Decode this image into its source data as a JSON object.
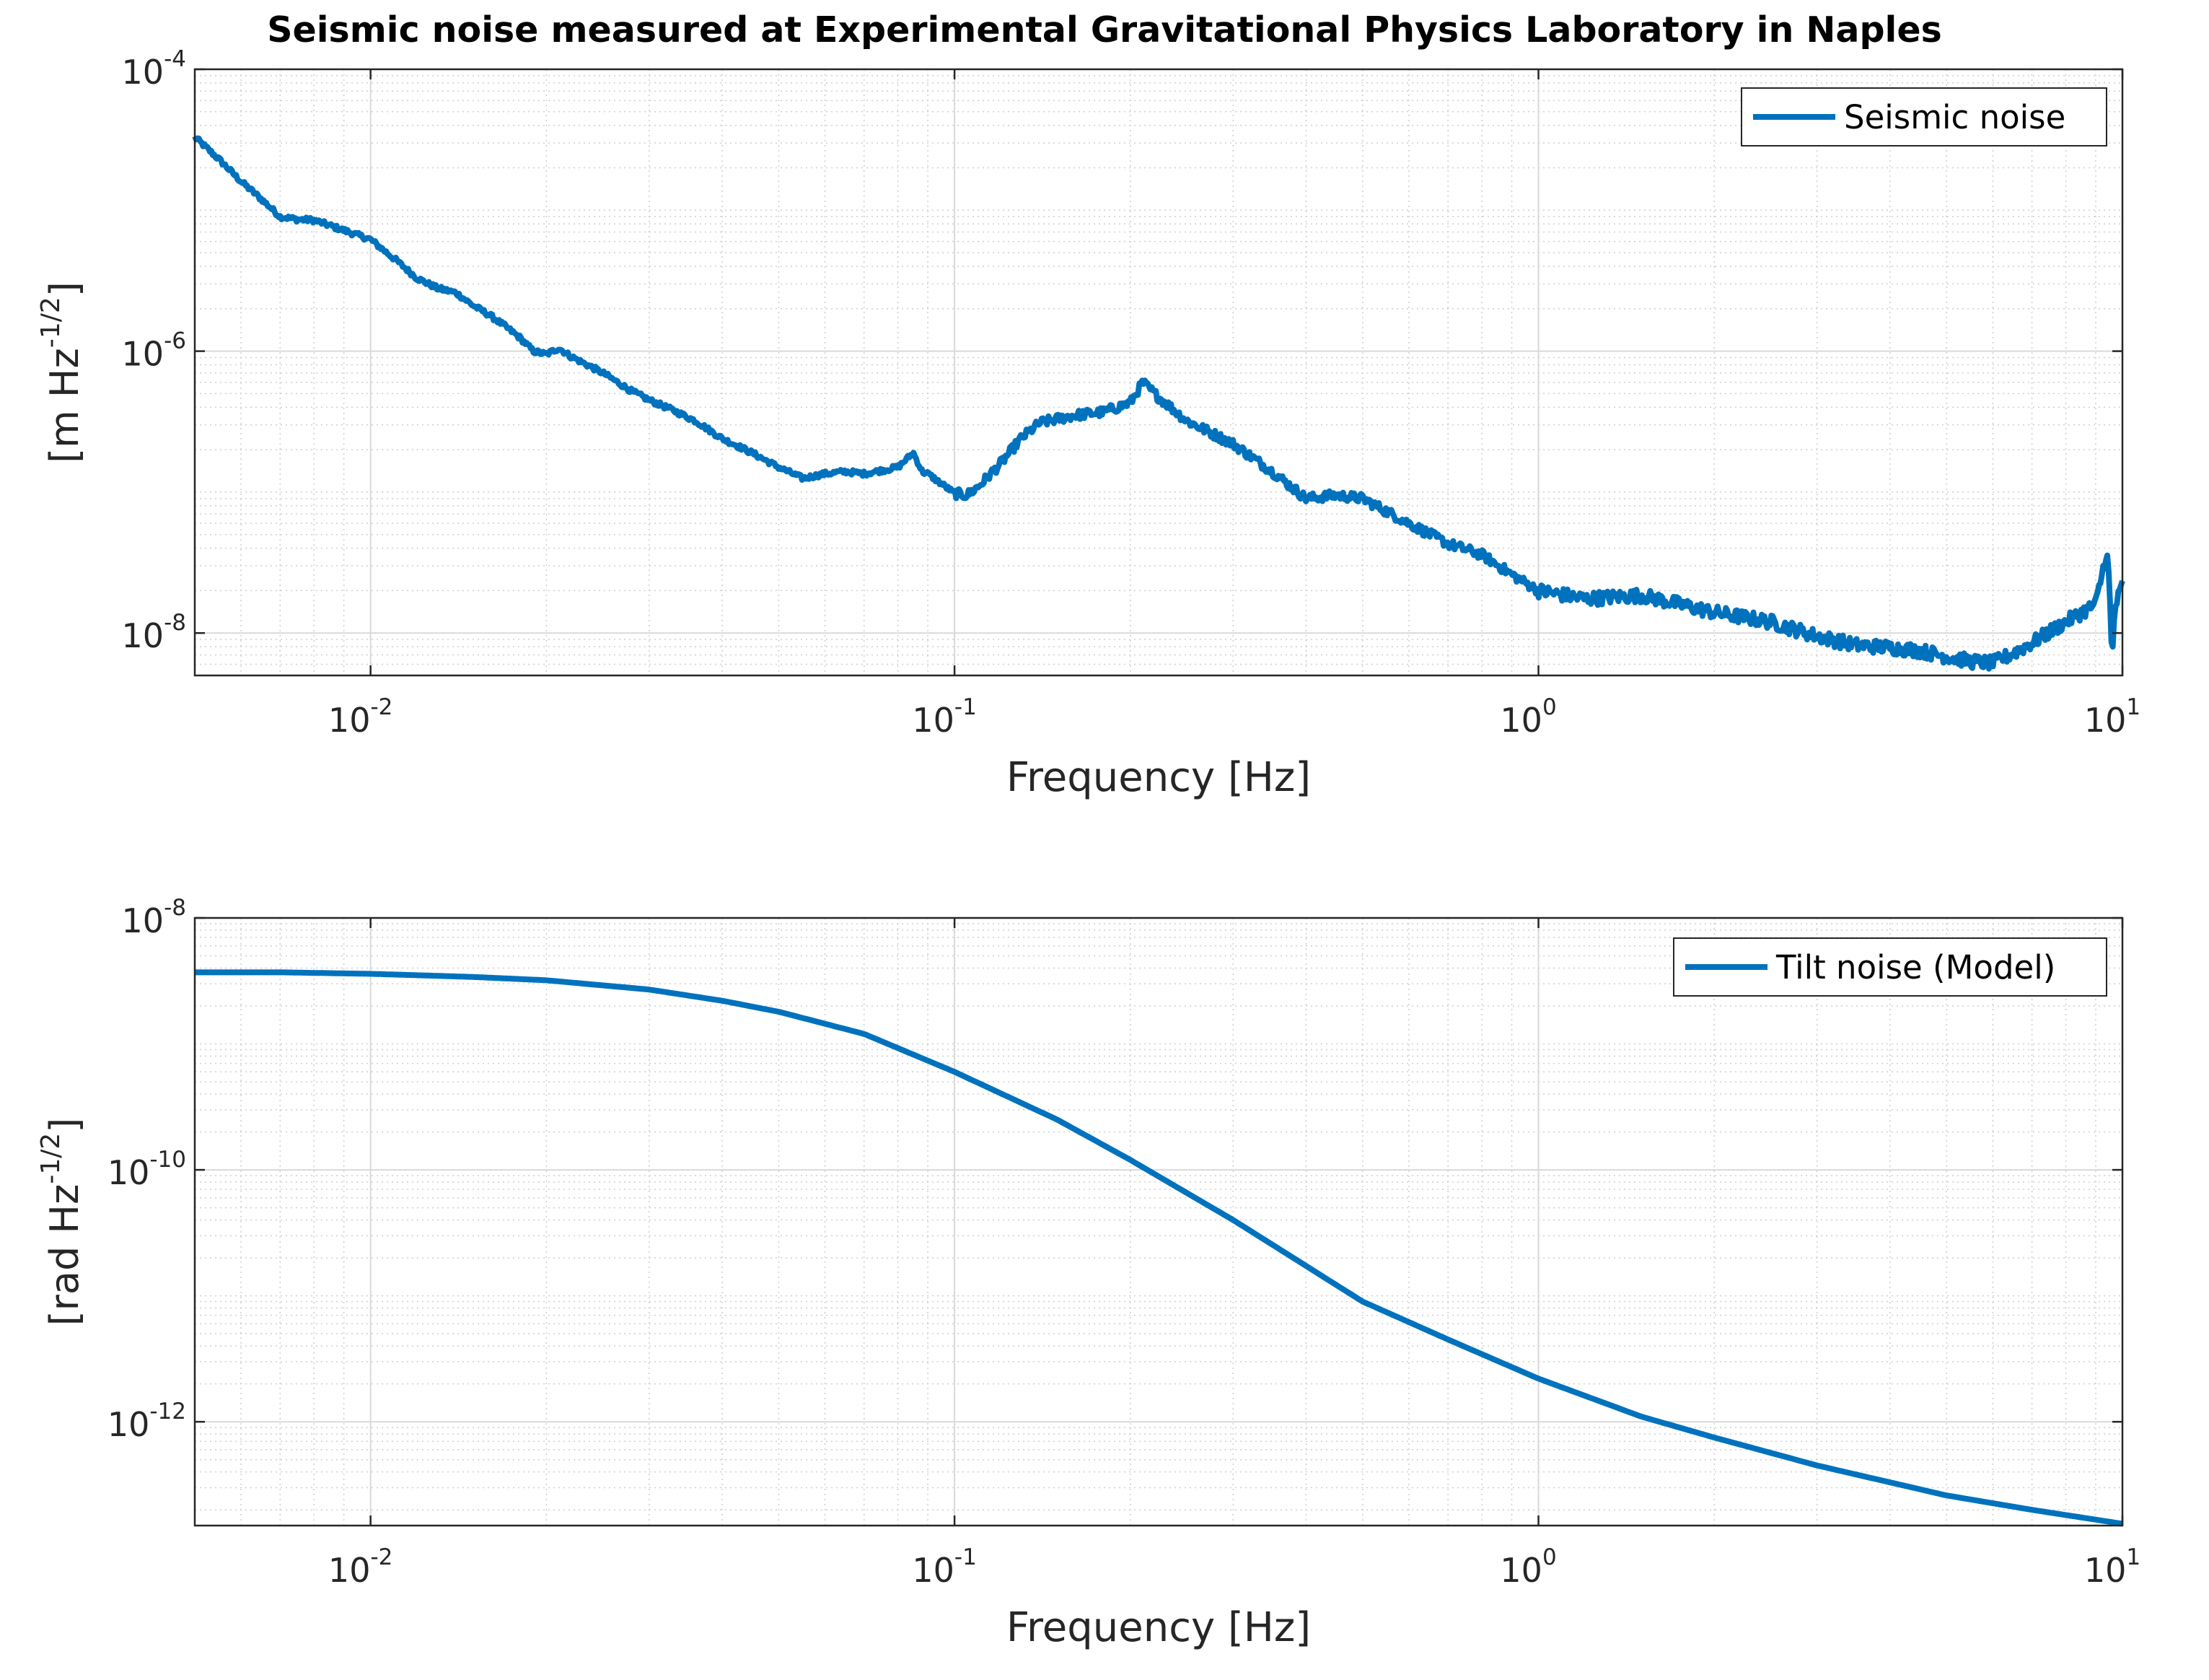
{
  "figure": {
    "title": "Seismic noise measured at Experimental Gravitational Physics Laboratory in Naples",
    "line_color": "#0072BD"
  },
  "chart_data": [
    {
      "type": "line",
      "xscale": "log",
      "yscale": "log",
      "xlim": [
        0.005,
        10
      ],
      "ylim": [
        5e-09,
        0.0001
      ],
      "xlabel": "Frequency [Hz]",
      "ylabel_base": "[m Hz",
      "ylabel_exp": "-1/2",
      "ylabel_close": "]",
      "grid": true,
      "minor_grid": true,
      "legend_location": "top-right",
      "xticks": [
        {
          "value": 0.01,
          "base": "10",
          "exp": "-2"
        },
        {
          "value": 0.1,
          "base": "10",
          "exp": "-1"
        },
        {
          "value": 1,
          "base": "10",
          "exp": "0"
        },
        {
          "value": 10,
          "base": "10",
          "exp": "1"
        }
      ],
      "yticks": [
        {
          "value": 1e-08,
          "base": "10",
          "exp": "-8"
        },
        {
          "value": 1e-06,
          "base": "10",
          "exp": "-6"
        },
        {
          "value": 0.0001,
          "base": "10",
          "exp": "-4"
        }
      ],
      "series": [
        {
          "name": "Seismic noise",
          "noisy": true,
          "x": [
            0.005,
            0.0055,
            0.006,
            0.0065,
            0.007,
            0.0075,
            0.008,
            0.009,
            0.01,
            0.011,
            0.012,
            0.013,
            0.014,
            0.015,
            0.016,
            0.017,
            0.018,
            0.019,
            0.02,
            0.021,
            0.022,
            0.025,
            0.028,
            0.03,
            0.033,
            0.036,
            0.04,
            0.045,
            0.05,
            0.055,
            0.06,
            0.065,
            0.07,
            0.08,
            0.085,
            0.088,
            0.09,
            0.1,
            0.105,
            0.11,
            0.12,
            0.13,
            0.14,
            0.15,
            0.16,
            0.18,
            0.2,
            0.21,
            0.22,
            0.25,
            0.3,
            0.35,
            0.4,
            0.45,
            0.5,
            0.6,
            0.7,
            0.8,
            0.9,
            1.0,
            1.2,
            1.5,
            1.8,
            2.0,
            2.5,
            3.0,
            3.5,
            4.0,
            4.5,
            5.0,
            5.5,
            6.0,
            6.5,
            7.0,
            8.0,
            9.0,
            9.4,
            9.5,
            9.6,
            9.7,
            10.0
          ],
          "y": [
            3.3e-05,
            2.3e-05,
            1.6e-05,
            1.2e-05,
            9e-06,
            8.6e-06,
            8.5e-06,
            7.2e-06,
            6.2e-06,
            4.5e-06,
            3.3e-06,
            2.8e-06,
            2.6e-06,
            2.1e-06,
            1.8e-06,
            1.5e-06,
            1.25e-06,
            1e-06,
            9.5e-07,
            1.05e-06,
            9.2e-07,
            7e-07,
            5.2e-07,
            4.5e-07,
            3.8e-07,
            3.2e-07,
            2.4e-07,
            1.9e-07,
            1.5e-07,
            1.25e-07,
            1.35e-07,
            1.4e-07,
            1.35e-07,
            1.5e-07,
            1.9e-07,
            1.4e-07,
            1.35e-07,
            9.8e-08,
            9.5e-08,
            1.1e-07,
            1.6e-07,
            2.4e-07,
            3.1e-07,
            3.3e-07,
            3.5e-07,
            3.7e-07,
            4.3e-07,
            6e-07,
            5e-07,
            3.2e-07,
            2.2e-07,
            1.4e-07,
            9e-08,
            9.5e-08,
            9e-08,
            6e-08,
            4.3e-08,
            3.6e-08,
            2.6e-08,
            2e-08,
            1.75e-08,
            1.85e-08,
            1.55e-08,
            1.4e-08,
            1.2e-08,
            9.5e-09,
            8.2e-09,
            7.9e-09,
            7.5e-09,
            6.8e-09,
            6.3e-09,
            6.1e-09,
            7.2e-09,
            8.5e-09,
            1.2e-08,
            1.6e-08,
            3.8e-08,
            2.2e-08,
            6e-09,
            1.5e-08,
            2.2e-08
          ]
        }
      ]
    },
    {
      "type": "line",
      "xscale": "log",
      "yscale": "log",
      "xlim": [
        0.005,
        10
      ],
      "ylim": [
        1.5e-13,
        1e-08
      ],
      "xlabel": "Frequency [Hz]",
      "ylabel_base": "[rad Hz",
      "ylabel_exp": "-1/2",
      "ylabel_close": "]",
      "grid": true,
      "minor_grid": true,
      "legend_location": "top-right",
      "xticks": [
        {
          "value": 0.01,
          "base": "10",
          "exp": "-2"
        },
        {
          "value": 0.1,
          "base": "10",
          "exp": "-1"
        },
        {
          "value": 1,
          "base": "10",
          "exp": "0"
        },
        {
          "value": 10,
          "base": "10",
          "exp": "1"
        }
      ],
      "yticks": [
        {
          "value": 1e-12,
          "base": "10",
          "exp": "-12"
        },
        {
          "value": 1e-10,
          "base": "10",
          "exp": "-10"
        },
        {
          "value": 1e-08,
          "base": "10",
          "exp": "-8"
        }
      ],
      "series": [
        {
          "name": "Tilt noise (Model)",
          "noisy": false,
          "x": [
            0.005,
            0.007,
            0.01,
            0.015,
            0.02,
            0.03,
            0.04,
            0.05,
            0.07,
            0.1,
            0.15,
            0.2,
            0.3,
            0.5,
            0.7,
            1.0,
            1.5,
            2.0,
            3.0,
            5.0,
            7.0,
            10.0
          ],
          "y": [
            3.7e-09,
            3.7e-09,
            3.6e-09,
            3.4e-09,
            3.2e-09,
            2.7e-09,
            2.2e-09,
            1.8e-09,
            1.2e-09,
            6e-10,
            2.5e-10,
            1.2e-10,
            4e-11,
            9e-12,
            4.5e-12,
            2.2e-12,
            1.1e-12,
            7.5e-13,
            4.5e-13,
            2.6e-13,
            2e-13,
            1.55e-13
          ]
        }
      ]
    }
  ]
}
